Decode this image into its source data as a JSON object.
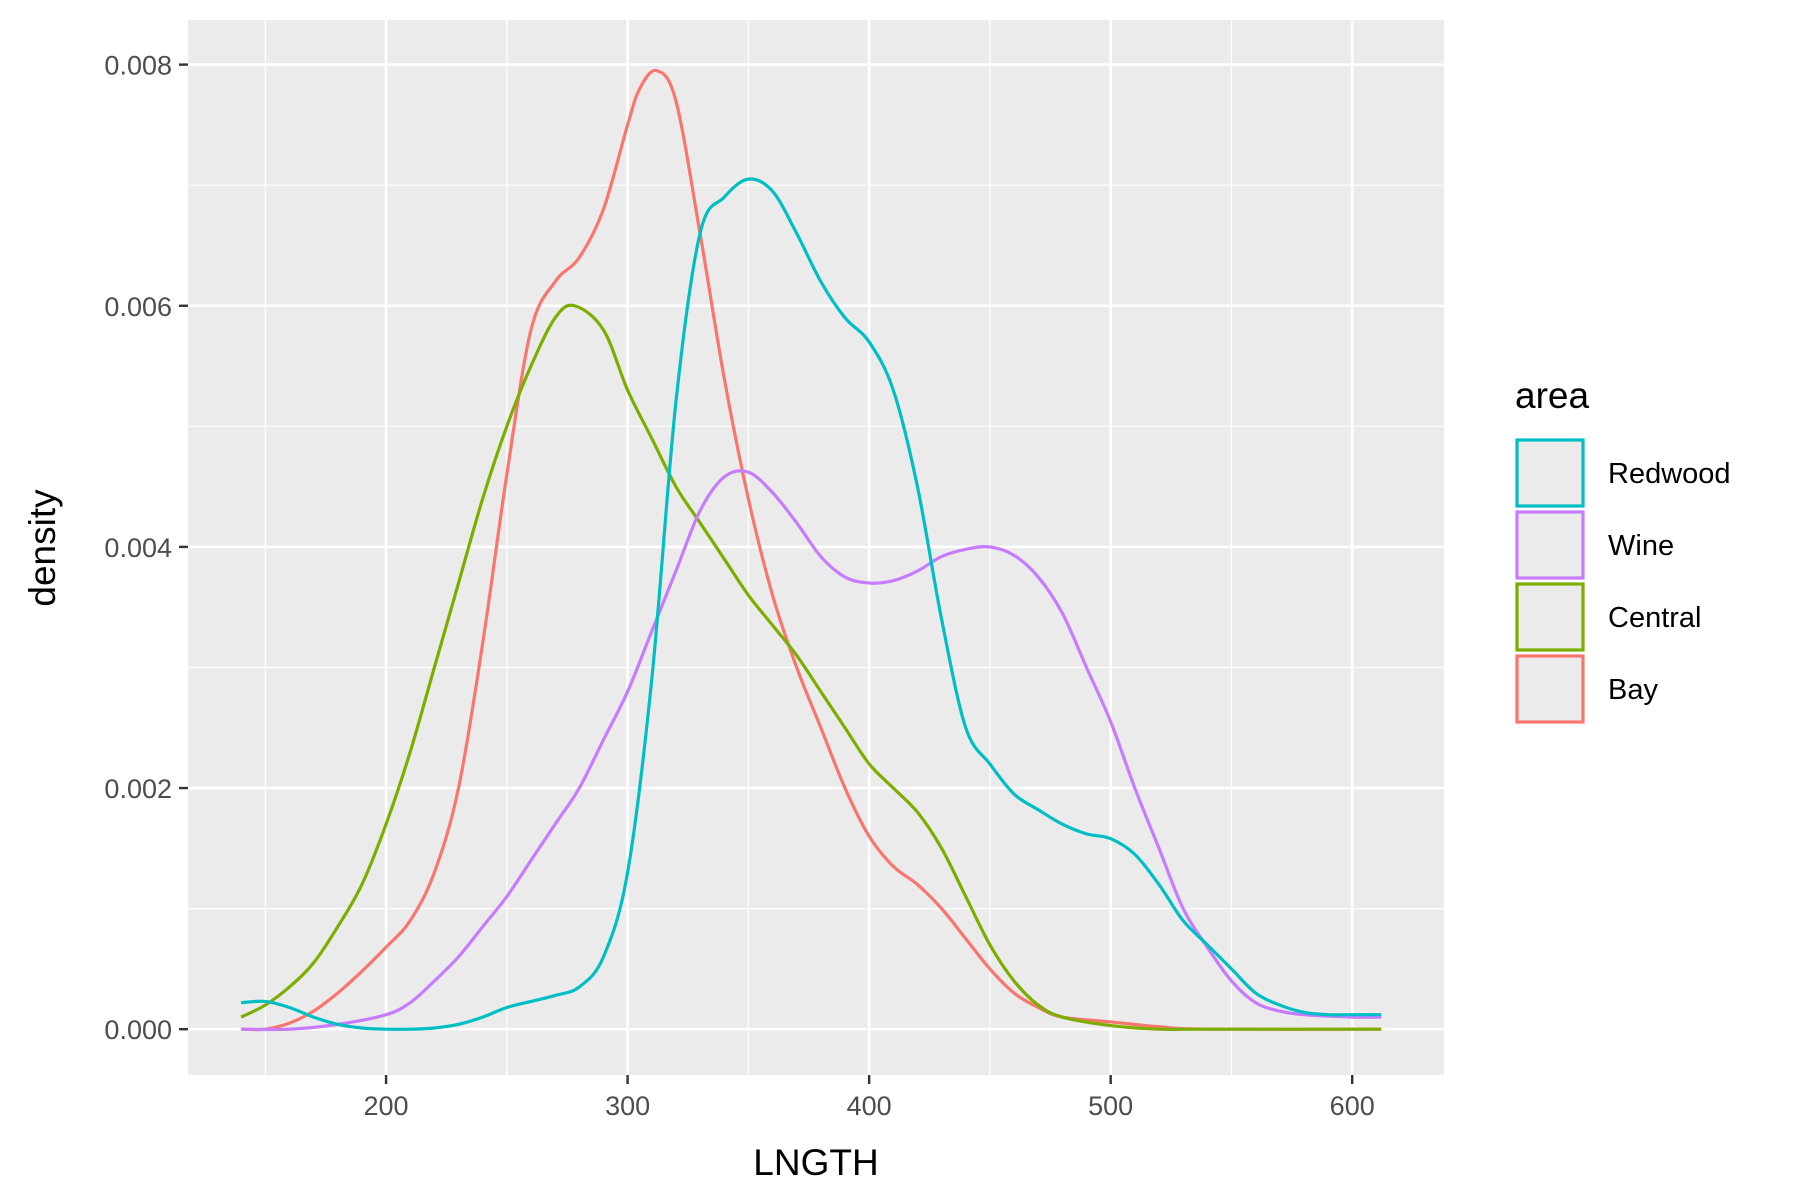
{
  "chart_data": {
    "type": "line",
    "title": "",
    "xlabel": "LNGTH",
    "ylabel": "density",
    "xlim": [
      118,
      638
    ],
    "ylim": [
      -0.00038,
      0.00837
    ],
    "x_ticks": [
      200,
      300,
      400,
      500,
      600
    ],
    "x_tick_labels": [
      "200",
      "300",
      "400",
      "500",
      "600"
    ],
    "y_ticks": [
      0.0,
      0.002,
      0.004,
      0.006,
      0.008
    ],
    "y_tick_labels": [
      "0.000",
      "0.002",
      "0.004",
      "0.006",
      "0.008"
    ],
    "grid": true,
    "legend": {
      "title": "area",
      "position": "right"
    },
    "series": [
      {
        "name": "Redwood",
        "color": "#00BFC4",
        "points": [
          [
            140,
            0.00022
          ],
          [
            150,
            0.00023
          ],
          [
            160,
            0.00018
          ],
          [
            170,
            0.0001
          ],
          [
            180,
            4e-05
          ],
          [
            190,
            1e-05
          ],
          [
            200,
            0.0
          ],
          [
            210,
            0.0
          ],
          [
            220,
            1e-05
          ],
          [
            230,
            4e-05
          ],
          [
            240,
            0.0001
          ],
          [
            250,
            0.00018
          ],
          [
            260,
            0.00023
          ],
          [
            270,
            0.00028
          ],
          [
            280,
            0.00035
          ],
          [
            290,
            0.0006
          ],
          [
            300,
            0.0013
          ],
          [
            310,
            0.0029
          ],
          [
            320,
            0.0052
          ],
          [
            330,
            0.0066
          ],
          [
            340,
            0.0069
          ],
          [
            350,
            0.00705
          ],
          [
            360,
            0.00695
          ],
          [
            370,
            0.0066
          ],
          [
            380,
            0.0062
          ],
          [
            390,
            0.0059
          ],
          [
            400,
            0.0057
          ],
          [
            410,
            0.0053
          ],
          [
            420,
            0.0045
          ],
          [
            430,
            0.0034
          ],
          [
            440,
            0.0025
          ],
          [
            450,
            0.0022
          ],
          [
            460,
            0.00195
          ],
          [
            470,
            0.00182
          ],
          [
            480,
            0.0017
          ],
          [
            490,
            0.00162
          ],
          [
            500,
            0.00158
          ],
          [
            510,
            0.00145
          ],
          [
            520,
            0.0012
          ],
          [
            530,
            0.0009
          ],
          [
            540,
            0.0007
          ],
          [
            550,
            0.0005
          ],
          [
            560,
            0.0003
          ],
          [
            570,
            0.0002
          ],
          [
            580,
            0.00014
          ],
          [
            590,
            0.00012
          ],
          [
            600,
            0.00012
          ],
          [
            612,
            0.00012
          ]
        ]
      },
      {
        "name": "Wine",
        "color": "#C77CFF",
        "points": [
          [
            140,
            0.0
          ],
          [
            160,
            0.0
          ],
          [
            180,
            4e-05
          ],
          [
            200,
            0.00012
          ],
          [
            210,
            0.00022
          ],
          [
            220,
            0.0004
          ],
          [
            230,
            0.0006
          ],
          [
            240,
            0.00085
          ],
          [
            250,
            0.0011
          ],
          [
            260,
            0.0014
          ],
          [
            270,
            0.0017
          ],
          [
            280,
            0.002
          ],
          [
            290,
            0.0024
          ],
          [
            300,
            0.0028
          ],
          [
            310,
            0.0033
          ],
          [
            320,
            0.0038
          ],
          [
            330,
            0.0043
          ],
          [
            340,
            0.00458
          ],
          [
            350,
            0.00462
          ],
          [
            360,
            0.00445
          ],
          [
            370,
            0.0042
          ],
          [
            380,
            0.00392
          ],
          [
            390,
            0.00375
          ],
          [
            400,
            0.0037
          ],
          [
            410,
            0.00372
          ],
          [
            420,
            0.0038
          ],
          [
            430,
            0.00392
          ],
          [
            440,
            0.00398
          ],
          [
            450,
            0.004
          ],
          [
            460,
            0.00393
          ],
          [
            470,
            0.00375
          ],
          [
            480,
            0.00345
          ],
          [
            490,
            0.003
          ],
          [
            500,
            0.00255
          ],
          [
            510,
            0.002
          ],
          [
            520,
            0.0015
          ],
          [
            530,
            0.001
          ],
          [
            540,
            0.00068
          ],
          [
            550,
            0.0004
          ],
          [
            560,
            0.00022
          ],
          [
            570,
            0.00015
          ],
          [
            580,
            0.00012
          ],
          [
            600,
            0.0001
          ],
          [
            612,
            0.0001
          ]
        ]
      },
      {
        "name": "Central",
        "color": "#7CAE00",
        "points": [
          [
            140,
            0.0001
          ],
          [
            150,
            0.0002
          ],
          [
            160,
            0.00035
          ],
          [
            170,
            0.00055
          ],
          [
            180,
            0.00085
          ],
          [
            190,
            0.0012
          ],
          [
            200,
            0.0017
          ],
          [
            210,
            0.0023
          ],
          [
            220,
            0.003
          ],
          [
            230,
            0.0037
          ],
          [
            240,
            0.0044
          ],
          [
            250,
            0.005
          ],
          [
            260,
            0.0055
          ],
          [
            270,
            0.0059
          ],
          [
            278,
            0.006
          ],
          [
            290,
            0.0058
          ],
          [
            300,
            0.0053
          ],
          [
            310,
            0.0049
          ],
          [
            320,
            0.0045
          ],
          [
            330,
            0.0042
          ],
          [
            340,
            0.0039
          ],
          [
            350,
            0.0036
          ],
          [
            360,
            0.00335
          ],
          [
            370,
            0.0031
          ],
          [
            380,
            0.0028
          ],
          [
            390,
            0.0025
          ],
          [
            400,
            0.0022
          ],
          [
            410,
            0.002
          ],
          [
            420,
            0.0018
          ],
          [
            430,
            0.0015
          ],
          [
            440,
            0.0011
          ],
          [
            450,
            0.0007
          ],
          [
            460,
            0.0004
          ],
          [
            470,
            0.0002
          ],
          [
            480,
            0.0001
          ],
          [
            500,
            3e-05
          ],
          [
            520,
            0.0
          ],
          [
            540,
            0.0
          ],
          [
            612,
            0.0
          ]
        ]
      },
      {
        "name": "Bay",
        "color": "#F8766D",
        "points": [
          [
            140,
            0.0
          ],
          [
            150,
            0.0
          ],
          [
            160,
            5e-05
          ],
          [
            170,
            0.00015
          ],
          [
            180,
            0.0003
          ],
          [
            190,
            0.00048
          ],
          [
            200,
            0.00068
          ],
          [
            210,
            0.0009
          ],
          [
            220,
            0.0013
          ],
          [
            230,
            0.002
          ],
          [
            240,
            0.0032
          ],
          [
            250,
            0.0046
          ],
          [
            260,
            0.0058
          ],
          [
            270,
            0.0062
          ],
          [
            280,
            0.0064
          ],
          [
            290,
            0.0068
          ],
          [
            300,
            0.0075
          ],
          [
            305,
            0.0078
          ],
          [
            312,
            0.00795
          ],
          [
            320,
            0.0077
          ],
          [
            330,
            0.0066
          ],
          [
            340,
            0.0054
          ],
          [
            350,
            0.0044
          ],
          [
            360,
            0.0036
          ],
          [
            370,
            0.003
          ],
          [
            380,
            0.0025
          ],
          [
            390,
            0.002
          ],
          [
            400,
            0.0016
          ],
          [
            410,
            0.00135
          ],
          [
            420,
            0.0012
          ],
          [
            430,
            0.001
          ],
          [
            440,
            0.00075
          ],
          [
            450,
            0.0005
          ],
          [
            460,
            0.0003
          ],
          [
            470,
            0.00018
          ],
          [
            480,
            0.0001
          ],
          [
            500,
            6e-05
          ],
          [
            520,
            2e-05
          ],
          [
            540,
            0.0
          ],
          [
            612,
            0.0
          ]
        ]
      }
    ]
  }
}
